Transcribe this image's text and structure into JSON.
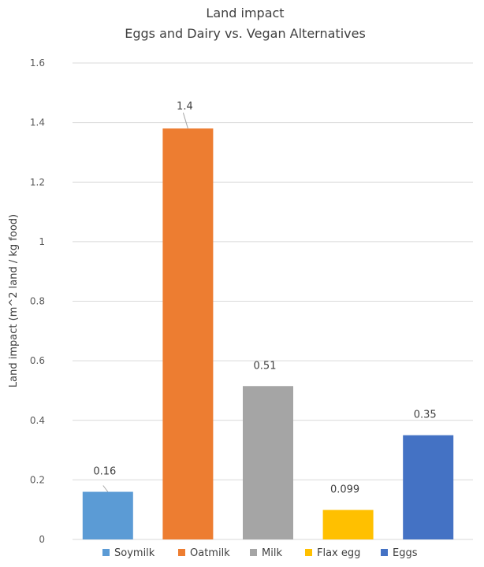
{
  "chart_data": {
    "type": "bar",
    "title": "Land impact",
    "subtitle": "Eggs and Dairy vs. Vegan Alternatives",
    "xlabel": "",
    "ylabel": "Land impact  (m^2 land / kg food)",
    "ylim": [
      0,
      1.6
    ],
    "yticks": [
      0,
      0.2,
      0.4,
      0.6,
      0.8,
      1,
      1.2,
      1.4,
      1.6
    ],
    "ytick_labels": [
      "0",
      "0.2",
      "0.4",
      "0.6",
      "0.8",
      "1",
      "1.2",
      "1.4",
      "1.6"
    ],
    "grid": true,
    "legend_position": "bottom",
    "categories": [
      "Soymilk",
      "Oatmilk",
      "Milk",
      "Flax egg",
      "Eggs"
    ],
    "values": [
      0.16,
      1.38,
      0.515,
      0.099,
      0.35
    ],
    "data_labels": [
      "0.16",
      "1.4",
      "0.51",
      "0.099",
      "0.35"
    ],
    "colors": [
      "#5b9bd5",
      "#ed7d31",
      "#a5a5a5",
      "#ffc000",
      "#4472c4"
    ]
  }
}
